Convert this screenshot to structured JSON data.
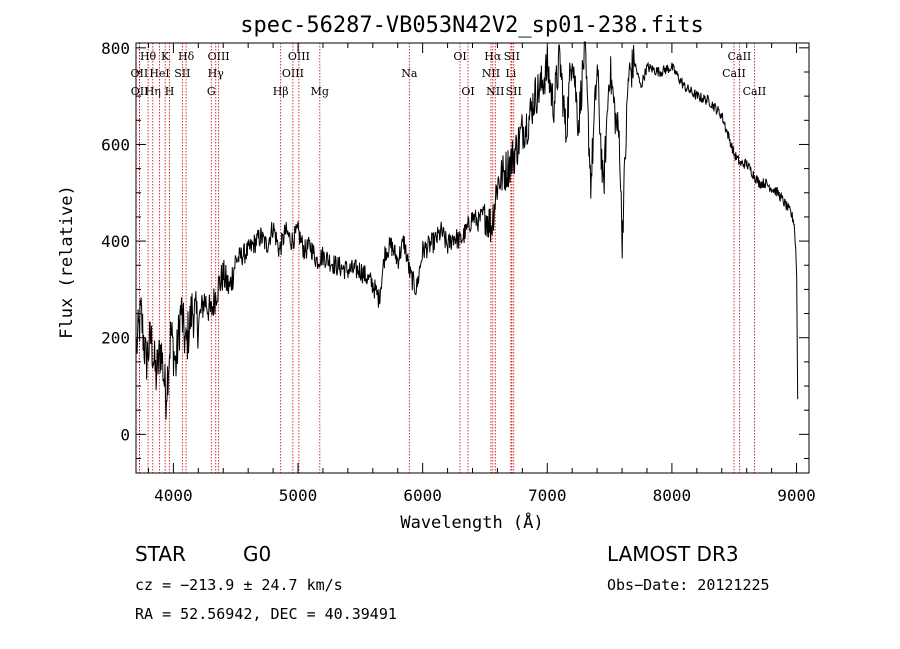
{
  "chart_data": {
    "type": "line",
    "title": "spec-56287-VB053N42V2_sp01-238.fits",
    "xlabel": "Wavelength (Å)",
    "ylabel": "Flux (relative)",
    "xlim": [
      3700,
      9100
    ],
    "ylim": [
      -80,
      810
    ],
    "xticks": [
      4000,
      5000,
      6000,
      7000,
      8000,
      9000
    ],
    "xtick_labels": [
      "4000",
      "5000",
      "6000",
      "7000",
      "8000",
      "9000"
    ],
    "yticks": [
      0,
      200,
      400,
      600,
      800
    ],
    "ytick_labels": [
      "0",
      "200",
      "400",
      "600",
      "800"
    ],
    "grid": false,
    "series": [
      {
        "name": "flux",
        "color": "#000000",
        "x": [
          3705,
          3740,
          3780,
          3820,
          3860,
          3900,
          3940,
          3980,
          4020,
          4060,
          4100,
          4150,
          4200,
          4250,
          4300,
          4350,
          4400,
          4450,
          4500,
          4600,
          4700,
          4750,
          4800,
          4850,
          4900,
          4950,
          5000,
          5050,
          5100,
          5150,
          5200,
          5300,
          5400,
          5500,
          5600,
          5650,
          5700,
          5750,
          5800,
          5850,
          5900,
          5950,
          6000,
          6050,
          6100,
          6150,
          6200,
          6250,
          6300,
          6350,
          6400,
          6450,
          6500,
          6550,
          6600,
          6650,
          6700,
          6750,
          6800,
          6850,
          6900,
          6950,
          7000,
          7050,
          7100,
          7150,
          7200,
          7250,
          7300,
          7350,
          7400,
          7450,
          7500,
          7550,
          7580,
          7600,
          7650,
          7700,
          7750,
          7800,
          7900,
          8000,
          8100,
          8200,
          8300,
          8400,
          8450,
          8500,
          8550,
          8600,
          8650,
          8700,
          8750,
          8800,
          8850,
          8900,
          8950,
          8980,
          9000,
          9010
        ],
        "y": [
          180,
          250,
          150,
          200,
          120,
          180,
          80,
          210,
          140,
          260,
          180,
          260,
          230,
          280,
          250,
          300,
          330,
          300,
          360,
          380,
          410,
          390,
          430,
          380,
          420,
          400,
          420,
          380,
          390,
          360,
          370,
          350,
          340,
          340,
          310,
          280,
          380,
          390,
          360,
          400,
          330,
          300,
          380,
          390,
          400,
          420,
          390,
          410,
          400,
          420,
          450,
          440,
          460,
          430,
          520,
          540,
          560,
          590,
          630,
          650,
          700,
          720,
          760,
          680,
          780,
          620,
          800,
          640,
          800,
          520,
          760,
          500,
          760,
          650,
          610,
          400,
          740,
          770,
          720,
          760,
          750,
          760,
          720,
          700,
          690,
          660,
          620,
          580,
          560,
          560,
          540,
          520,
          520,
          510,
          500,
          480,
          460,
          440,
          350,
          40
        ]
      }
    ],
    "lines": [
      {
        "label": "Hθ",
        "x": 3797,
        "row": 0
      },
      {
        "label": "K",
        "x": 3934,
        "row": 0
      },
      {
        "label": "Hδ",
        "x": 4102,
        "row": 0
      },
      {
        "label": "OIII",
        "x": 4363,
        "row": 0
      },
      {
        "label": "OIII",
        "x": 5007,
        "row": 0
      },
      {
        "label": "OI",
        "x": 6300,
        "row": 0
      },
      {
        "label": "Hα",
        "x": 6563,
        "row": 0
      },
      {
        "label": "SII",
        "x": 6716,
        "row": 0
      },
      {
        "label": "CaII",
        "x": 8542,
        "row": 0
      },
      {
        "label": "OII",
        "x": 3727,
        "row": 1
      },
      {
        "label": "HeI",
        "x": 3889,
        "row": 1
      },
      {
        "label": "SII",
        "x": 4072,
        "row": 1
      },
      {
        "label": "Hγ",
        "x": 4340,
        "row": 1
      },
      {
        "label": "OIII",
        "x": 4959,
        "row": 1
      },
      {
        "label": "Na",
        "x": 5893,
        "row": 1
      },
      {
        "label": "NII",
        "x": 6548,
        "row": 1
      },
      {
        "label": "Li",
        "x": 6708,
        "row": 1
      },
      {
        "label": "CaII",
        "x": 8498,
        "row": 1
      },
      {
        "label": "OII",
        "x": 3729,
        "row": 2
      },
      {
        "label": "Hη",
        "x": 3835,
        "row": 2
      },
      {
        "label": "H",
        "x": 3969,
        "row": 2
      },
      {
        "label": "G",
        "x": 4304,
        "row": 2
      },
      {
        "label": "Hβ",
        "x": 4861,
        "row": 2
      },
      {
        "label": "Mg",
        "x": 5175,
        "row": 2
      },
      {
        "label": "OI",
        "x": 6364,
        "row": 2
      },
      {
        "label": "NII",
        "x": 6583,
        "row": 2
      },
      {
        "label": "SII",
        "x": 6731,
        "row": 2
      },
      {
        "label": "CaII",
        "x": 8662,
        "row": 2
      }
    ],
    "line_color": "#cc0000"
  },
  "info": {
    "type": "STAR",
    "subclass": "G0",
    "survey": "LAMOST DR3",
    "cz": "cz = −213.9 ± 24.7 km/s",
    "obs_date": "Obs−Date: 20121225",
    "radec": "RA =  52.56942, DEC =  40.39491"
  }
}
